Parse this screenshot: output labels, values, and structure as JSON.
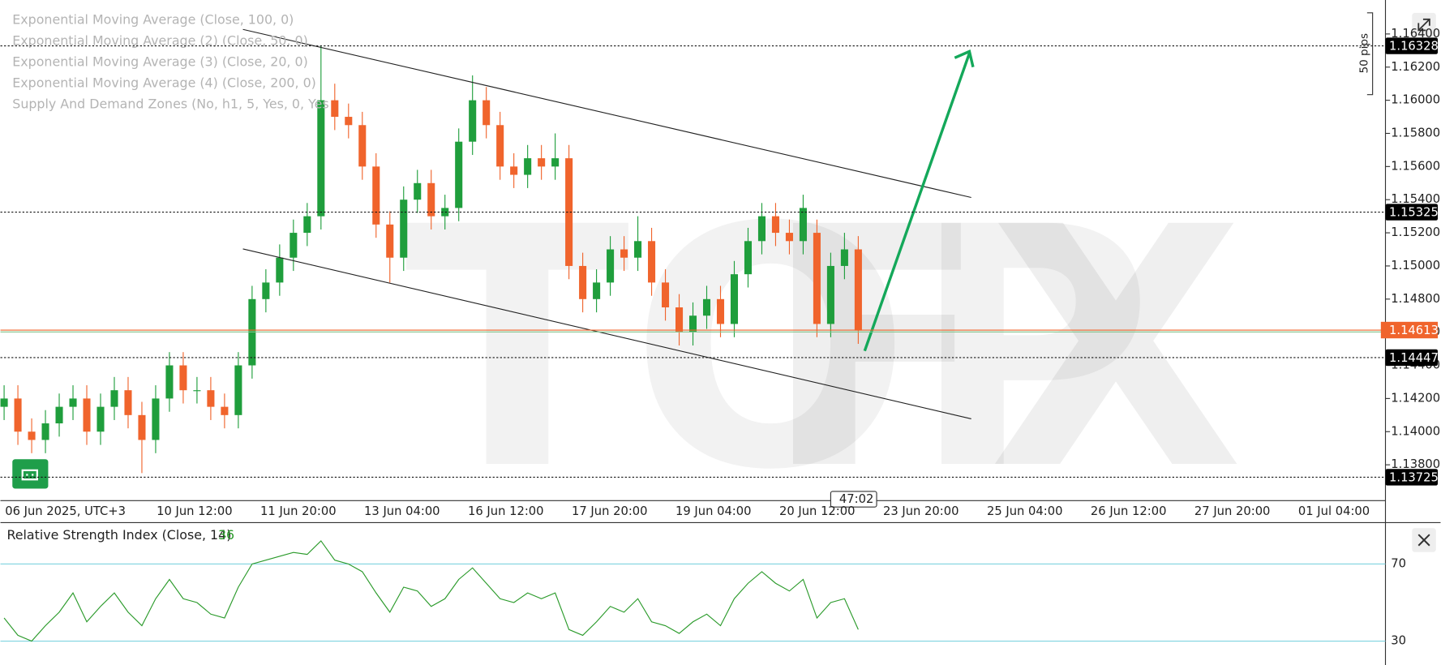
{
  "chart_data": [
    {
      "type": "candlestick",
      "indicators": [
        "Exponential Moving Average (Close, 100, 0)",
        "Exponential Moving Average (2) (Close, 50, 0)",
        "Exponential Moving Average (3) (Close, 20, 0)",
        "Exponential Moving Average (4) (Close, 200, 0)",
        "Supply And Demand Zones (No, h1, 5, Yes, 0, Yes"
      ],
      "watermark": [
        "TOP",
        "FX"
      ],
      "annotation": "50 pips",
      "countdown": "47:02",
      "up_color": "#1f9e3c",
      "down_color": "#f0642c",
      "ylim": [
        1.13584,
        1.16605
      ],
      "yticks": [
        {
          "value": 1.138,
          "label": "1.13800"
        },
        {
          "value": 1.14,
          "label": "1.14000"
        },
        {
          "value": 1.142,
          "label": "1.14200"
        },
        {
          "value": 1.144,
          "label": "1.14400"
        },
        {
          "value": 1.146,
          "label": "1.14600"
        },
        {
          "value": 1.148,
          "label": "1.14800"
        },
        {
          "value": 1.15,
          "label": "1.15000"
        },
        {
          "value": 1.152,
          "label": "1.15200"
        },
        {
          "value": 1.154,
          "label": "1.15400"
        },
        {
          "value": 1.156,
          "label": "1.15600"
        },
        {
          "value": 1.158,
          "label": "1.15800"
        },
        {
          "value": 1.16,
          "label": "1.16000"
        },
        {
          "value": 1.162,
          "label": "1.16200"
        },
        {
          "value": 1.164,
          "label": "1.16400"
        }
      ],
      "levels": [
        1.16328,
        1.15325,
        1.14447,
        1.13725
      ],
      "last_price": 1.14613,
      "xtick_labels": [
        "06 Jun 2025, UTC+3",
        "10 Jun 12:00",
        "11 Jun 20:00",
        "13 Jun 04:00",
        "16 Jun 12:00",
        "17 Jun 20:00",
        "19 Jun 04:00",
        "20 Jun 12:00",
        "23 Jun 20:00",
        "25 Jun 04:00",
        "26 Jun 12:00",
        "27 Jun 20:00",
        "01 Jul 04:00"
      ],
      "open": [
        1.1415,
        1.142,
        1.14,
        1.1395,
        1.1405,
        1.1415,
        1.142,
        1.14,
        1.1415,
        1.1425,
        1.141,
        1.1395,
        1.142,
        1.144,
        1.1425,
        1.1425,
        1.1415,
        1.141,
        1.144,
        1.148,
        1.149,
        1.1505,
        1.152,
        1.153,
        1.16,
        1.159,
        1.1585,
        1.156,
        1.1525,
        1.1505,
        1.154,
        1.155,
        1.153,
        1.1535,
        1.1575,
        1.16,
        1.1585,
        1.156,
        1.1555,
        1.1565,
        1.156,
        1.1565,
        1.15,
        1.148,
        1.149,
        1.151,
        1.1505,
        1.1515,
        1.149,
        1.1475,
        1.146,
        1.147,
        1.148,
        1.1465,
        1.1495,
        1.1515,
        1.153,
        1.152,
        1.1515,
        1.152,
        1.1465,
        1.15,
        1.151
      ],
      "high": [
        1.1428,
        1.1428,
        1.1408,
        1.1413,
        1.1423,
        1.1428,
        1.1428,
        1.1423,
        1.1433,
        1.1433,
        1.1418,
        1.1428,
        1.1448,
        1.1448,
        1.1433,
        1.1433,
        1.1423,
        1.1448,
        1.1488,
        1.1498,
        1.1513,
        1.1528,
        1.1538,
        1.1633,
        1.161,
        1.1598,
        1.1593,
        1.1568,
        1.1533,
        1.1548,
        1.1558,
        1.1558,
        1.1543,
        1.1583,
        1.1615,
        1.1608,
        1.1593,
        1.1568,
        1.1573,
        1.1573,
        1.158,
        1.1573,
        1.1508,
        1.1498,
        1.1518,
        1.1518,
        1.153,
        1.1523,
        1.1498,
        1.1483,
        1.1478,
        1.1488,
        1.1488,
        1.1503,
        1.1523,
        1.1538,
        1.1538,
        1.1528,
        1.1543,
        1.1528,
        1.1508,
        1.152,
        1.1518
      ],
      "low": [
        1.1407,
        1.1392,
        1.1387,
        1.1387,
        1.1397,
        1.1407,
        1.1392,
        1.1392,
        1.1407,
        1.1402,
        1.1375,
        1.1387,
        1.1412,
        1.1417,
        1.1417,
        1.1407,
        1.1402,
        1.1402,
        1.1432,
        1.1472,
        1.1482,
        1.1497,
        1.1512,
        1.1522,
        1.1582,
        1.1577,
        1.1552,
        1.1517,
        1.149,
        1.1497,
        1.1532,
        1.1522,
        1.1522,
        1.1527,
        1.1567,
        1.1577,
        1.1552,
        1.1547,
        1.1547,
        1.1552,
        1.1552,
        1.1492,
        1.1472,
        1.1472,
        1.1482,
        1.1497,
        1.1497,
        1.1482,
        1.1467,
        1.1452,
        1.1452,
        1.1462,
        1.1457,
        1.1457,
        1.1487,
        1.1507,
        1.1512,
        1.1507,
        1.1507,
        1.1457,
        1.1457,
        1.1492,
        1.1453
      ],
      "close": [
        1.142,
        1.14,
        1.1395,
        1.1405,
        1.1415,
        1.142,
        1.14,
        1.1415,
        1.1425,
        1.141,
        1.1395,
        1.142,
        1.144,
        1.1425,
        1.1425,
        1.1415,
        1.141,
        1.144,
        1.148,
        1.149,
        1.1505,
        1.152,
        1.153,
        1.16,
        1.159,
        1.1585,
        1.156,
        1.1525,
        1.1505,
        1.154,
        1.155,
        1.153,
        1.1535,
        1.1575,
        1.16,
        1.1585,
        1.156,
        1.1555,
        1.1565,
        1.156,
        1.1565,
        1.15,
        1.148,
        1.149,
        1.151,
        1.1505,
        1.1515,
        1.149,
        1.1475,
        1.146,
        1.147,
        1.148,
        1.1465,
        1.1495,
        1.1515,
        1.153,
        1.152,
        1.1515,
        1.1535,
        1.1465,
        1.15,
        1.151,
        1.1461
      ]
    },
    {
      "type": "line",
      "title": "Relative Strength Index (Close, 14)",
      "color": "#2a9a2a",
      "level_color": "#7fd3e0",
      "ylim": [
        17.6,
        91
      ],
      "yticks": [
        30,
        70
      ],
      "values": [
        42,
        33,
        30,
        38,
        45,
        55,
        40,
        48,
        55,
        45,
        38,
        52,
        62,
        52,
        50,
        44,
        42,
        58,
        70,
        72,
        74,
        76,
        75,
        82,
        72,
        70,
        66,
        55,
        45,
        58,
        56,
        48,
        52,
        62,
        68,
        60,
        52,
        50,
        55,
        52,
        55,
        36,
        33,
        40,
        48,
        45,
        52,
        40,
        38,
        34,
        40,
        44,
        38,
        52,
        60,
        66,
        60,
        56,
        62,
        42,
        50,
        52,
        36
      ]
    }
  ]
}
